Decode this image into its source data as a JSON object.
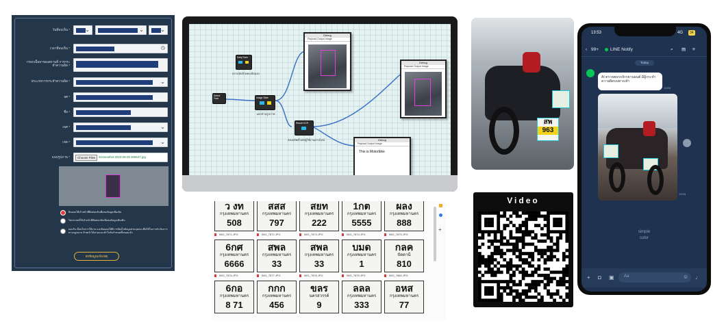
{
  "form": {
    "rows": [
      {
        "label": "วันที่พบเห็น *",
        "value": ""
      },
      {
        "label": "เวลาที่พบเห็น *",
        "value": ""
      },
      {
        "label": "กรอกเนื้อหาของสถานที่ การกระทำความผิด *",
        "value": ""
      },
      {
        "label": "ประเภทการกระทำความผิด *",
        "value": ""
      },
      {
        "label": "ยศ *",
        "value": ""
      },
      {
        "label": "ชื่อ *",
        "value": ""
      },
      {
        "label": "เพศ *",
        "value": ""
      },
      {
        "label": "เขต *",
        "value": ""
      },
      {
        "label": "แนบรูปภาพ *",
        "value": ""
      }
    ],
    "file_button": "Choose Files",
    "file_name": "Screenshot 2023-08-09 205547.jpg",
    "radios": [
      {
        "text": "ยินยอมให้เจ้าหน้าที่ติดต่อกลับเพื่อขอข้อมูลเพิ่มเติม",
        "checked": true
      },
      {
        "text": "ไม่ประสงค์ให้เจ้าหน้าที่ติดต่อกลับเพื่อขอข้อมูลเพิ่มเติม",
        "checked": false
      },
      {
        "text": "ยอมรับ เงื่อนไขการใช้งาน และยินยอมให้มีการจัดเก็บข้อมูลส่วนบุคคล เพื่อใช้ในการดำเนินการตามกฎหมาย ข้าพเจ้าได้อ่านและเข้าใจข้อกำหนดทั้งหมดแล้ว",
        "checked": false
      }
    ],
    "submit_label": "ส่งข้อมูลแจ้งเหตุ"
  },
  "flow": {
    "nodes": [
      {
        "label": "DeepTrain"
      },
      {
        "label": "Image Slide"
      },
      {
        "label": "Detect Face"
      },
      {
        "label": "Result OCR"
      }
    ],
    "node_captions": [
      "ตรวจจับป้ายทะเบียนรถ",
      "แยกส่วนรูปภาพ",
      "ส่งผลลัพธ์ไปยังผู้ใช้งานผ่านไลน์"
    ],
    "debug_windows": [
      {
        "title": "Debug",
        "tabs": "Payload   Output   Image"
      },
      {
        "title": "Debug",
        "tabs": "Payload   Output   Image"
      },
      {
        "title": "Debug",
        "tabs": "Payload   Output   Image",
        "body": "This is Motorbike"
      }
    ]
  },
  "plates": [
    {
      "top": "ว งท",
      "middle": "กรุงเทพมหานคร",
      "bottom": "508",
      "file": "IMG_7871.JPG"
    },
    {
      "top": "สสส",
      "middle": "กรุงเทพมหานคร",
      "bottom": "797",
      "file": "IMG_7872.JPG"
    },
    {
      "top": "สยท",
      "middle": "กรุงเทพมหานคร",
      "bottom": "222",
      "file": "IMG_7873.JPG"
    },
    {
      "top": "1กต",
      "middle": "กรุงเทพมหานคร",
      "bottom": "5555",
      "file": "IMG_7874.JPG"
    },
    {
      "top": "ผลง",
      "middle": "กรุงเทพมหานคร",
      "bottom": "888",
      "file": "IMG_7875.JPG"
    },
    {
      "top": "6กศ",
      "middle": "กรุงเทพมหานคร",
      "bottom": "6666",
      "file": "IMG_7876.JPG"
    },
    {
      "top": "สพล",
      "middle": "กรุงเทพมหานคร",
      "bottom": "33",
      "file": "IMG_7877.JPG"
    },
    {
      "top": "สพล",
      "middle": "กรุงเทพมหานคร",
      "bottom": "33",
      "file": "IMG_7878.JPG"
    },
    {
      "top": "บมด",
      "middle": "กรุงเทพมหานคร",
      "bottom": "1",
      "file": "IMG_7879.JPG"
    },
    {
      "top": "กลค",
      "middle": "ปัตตานี",
      "bottom": "810",
      "file": "IMG_7880.JPG"
    },
    {
      "top": "6กอ",
      "middle": "กรุงเทพมหานคร",
      "bottom": "8 71",
      "file": "IMG_7881.JPG"
    },
    {
      "top": "กกก",
      "middle": "กรุงเทพมหานคร",
      "bottom": "456",
      "file": "IMG_7882.JPG"
    },
    {
      "top": "ขลร",
      "middle": "นครสวรรค์",
      "bottom": "9",
      "file": "IMG_7883.JPG"
    },
    {
      "top": "ลลล",
      "middle": "กรุงเทพมหานคร",
      "bottom": "333",
      "file": "IMG_7884.JPG"
    },
    {
      "top": "อหส",
      "middle": "กรุงเทพมหานคร",
      "bottom": "77",
      "file": "IMG_7885.JPG"
    }
  ],
  "moto_plate": {
    "line1": "สพ",
    "line2": "963"
  },
  "qr": {
    "title": "Video"
  },
  "phone": {
    "time": "13:53",
    "network": "4G",
    "battery": "34",
    "back_count": "99+",
    "chat_title": "LINE Notify",
    "date": "Today",
    "message": "AI ตรวจพบรถจักรยานยนต์ มีผู้กระทำความผิดบนทางเท้า",
    "time1": "13:53",
    "time2": "13:53",
    "watermark1": "simple",
    "watermark2": "color",
    "composer_placeholder": "Aa"
  },
  "colors": {
    "form_bg": "#243649",
    "phone_bg": "#1f3250",
    "accent_line": "#06c755"
  }
}
